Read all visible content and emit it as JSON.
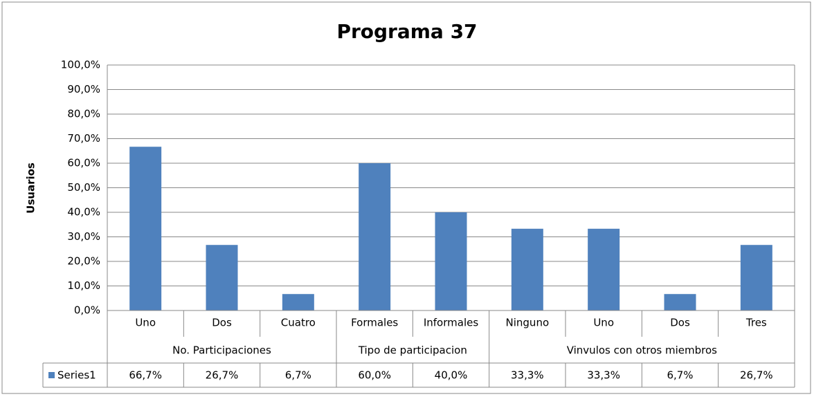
{
  "chart_data": {
    "type": "bar",
    "title": "Programa 37",
    "y_label": "Usuarios",
    "groups": [
      {
        "name": "No. Participaciones",
        "categories": [
          "Uno",
          "Dos",
          "Cuatro"
        ]
      },
      {
        "name": "Tipo de participacion",
        "categories": [
          "Formales",
          "Informales"
        ]
      },
      {
        "name": "Vinvulos con otros miembros",
        "categories": [
          "Ninguno",
          "Uno",
          "Dos",
          "Tres"
        ]
      }
    ],
    "series": [
      {
        "name": "Series1",
        "color": "#4f81bd",
        "values": [
          66.7,
          26.7,
          6.7,
          60.0,
          40.0,
          33.3,
          33.3,
          6.7,
          26.7
        ],
        "value_labels": [
          "66,7%",
          "26,7%",
          "6,7%",
          "60,0%",
          "40,0%",
          "33,3%",
          "33,3%",
          "6,7%",
          "26,7%"
        ]
      }
    ],
    "ylim": [
      0,
      100
    ],
    "yticks": [
      {
        "value": 0,
        "label": "0,0%"
      },
      {
        "value": 10,
        "label": "10,0%"
      },
      {
        "value": 20,
        "label": "20,0%"
      },
      {
        "value": 30,
        "label": "30,0%"
      },
      {
        "value": 40,
        "label": "40,0%"
      },
      {
        "value": 50,
        "label": "50,0%"
      },
      {
        "value": 60,
        "label": "60,0%"
      },
      {
        "value": 70,
        "label": "70,0%"
      },
      {
        "value": 80,
        "label": "80,0%"
      },
      {
        "value": 90,
        "label": "90,0%"
      },
      {
        "value": 100,
        "label": "100,0%"
      }
    ],
    "grid": true
  }
}
